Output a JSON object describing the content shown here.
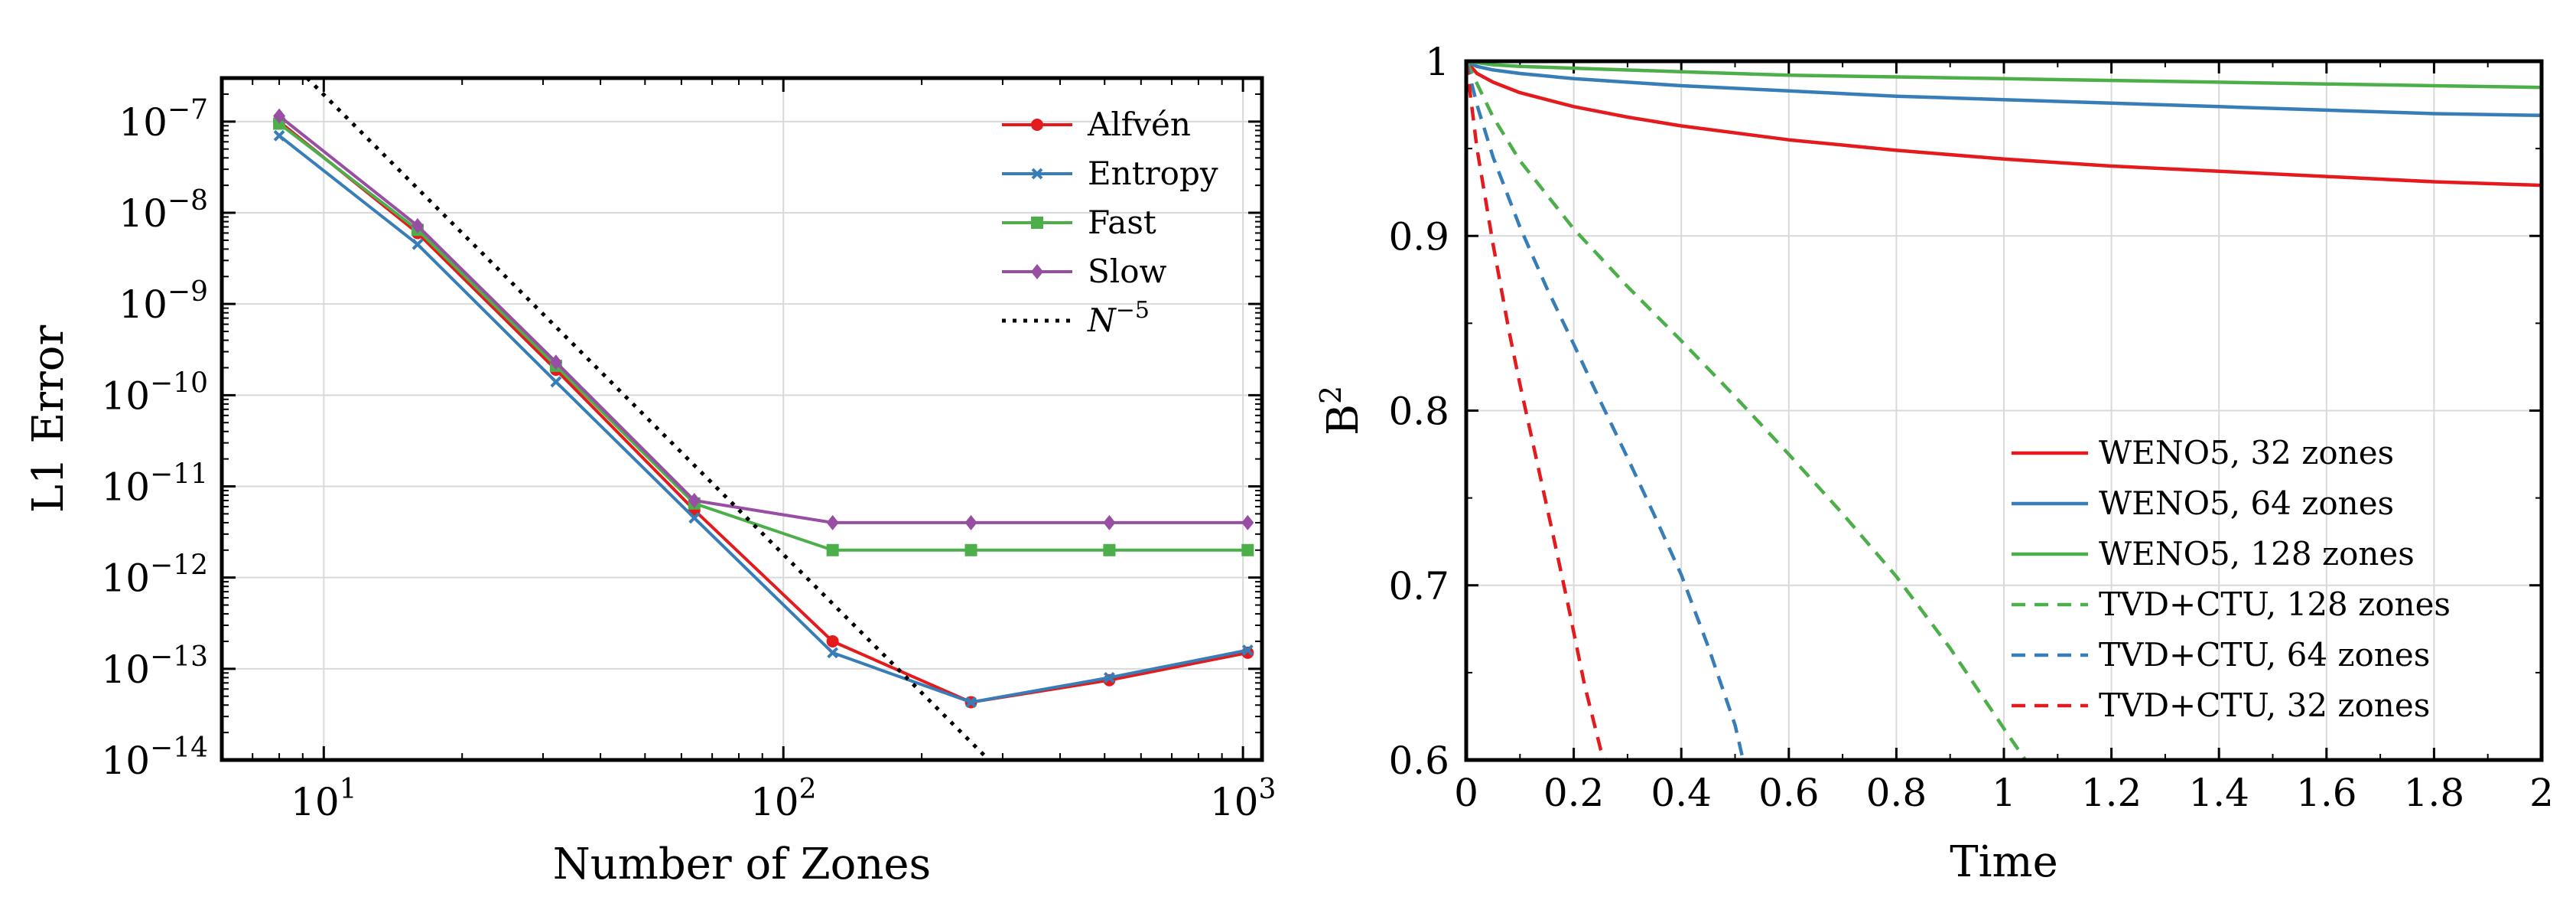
{
  "chart_data": [
    {
      "type": "line",
      "xscale": "log",
      "yscale": "log",
      "xlabel": "Number of Zones",
      "ylabel": "L1 Error",
      "xlim": [
        6,
        1100
      ],
      "ylim": [
        1e-14,
        3e-07
      ],
      "xticks": [
        {
          "value": 10,
          "base": "10",
          "exp": "1"
        },
        {
          "value": 100,
          "base": "10",
          "exp": "2"
        },
        {
          "value": 1000,
          "base": "10",
          "exp": "3"
        }
      ],
      "yticks": [
        {
          "value": 1e-14,
          "base": "10",
          "exp": "−14"
        },
        {
          "value": 1e-13,
          "base": "10",
          "exp": "−13"
        },
        {
          "value": 1e-12,
          "base": "10",
          "exp": "−12"
        },
        {
          "value": 1e-11,
          "base": "10",
          "exp": "−11"
        },
        {
          "value": 1e-10,
          "base": "10",
          "exp": "−10"
        },
        {
          "value": 1e-09,
          "base": "10",
          "exp": "−9"
        },
        {
          "value": 1e-08,
          "base": "10",
          "exp": "−8"
        },
        {
          "value": 1e-07,
          "base": "10",
          "exp": "−7"
        }
      ],
      "grid": true,
      "legend_position": "top-right",
      "series": [
        {
          "name": "Alfvén",
          "color": "#e41a1c",
          "marker": "circle",
          "x": [
            8,
            16,
            32,
            64,
            128,
            256,
            512,
            1024
          ],
          "y": [
            1e-07,
            6e-09,
            1.9e-10,
            5.5e-12,
            2e-13,
            4.3e-14,
            7.5e-14,
            1.5e-13
          ]
        },
        {
          "name": "Entropy",
          "color": "#377eb8",
          "marker": "x",
          "x": [
            8,
            16,
            32,
            64,
            128,
            256,
            512,
            1024
          ],
          "y": [
            7e-08,
            4.5e-09,
            1.4e-10,
            4.5e-12,
            1.5e-13,
            4.3e-14,
            8e-14,
            1.6e-13
          ]
        },
        {
          "name": "Fast",
          "color": "#4daf4a",
          "marker": "square",
          "x": [
            8,
            16,
            32,
            64,
            128,
            256,
            512,
            1024
          ],
          "y": [
            9.5e-08,
            6.5e-09,
            2.1e-10,
            6.5e-12,
            2e-12,
            2e-12,
            2e-12,
            2e-12
          ]
        },
        {
          "name": "Slow",
          "color": "#984ea3",
          "marker": "diamond",
          "x": [
            8,
            16,
            32,
            64,
            128,
            256,
            512,
            1024
          ],
          "y": [
            1.15e-07,
            7.2e-09,
            2.3e-10,
            7e-12,
            4e-12,
            4e-12,
            4e-12,
            4e-12
          ]
        },
        {
          "name": "N",
          "name_sup": "−5",
          "color": "#000000",
          "dash": "dotted",
          "x": [
            9.2,
            280
          ],
          "y": [
            3e-07,
            1e-14
          ]
        }
      ]
    },
    {
      "type": "line",
      "xlabel": "Time",
      "ylabel": "B",
      "ylabel_sup": "2",
      "xlim": [
        0,
        2
      ],
      "ylim": [
        0.6,
        1.0
      ],
      "xticks": [
        "0",
        "0.2",
        "0.4",
        "0.6",
        "0.8",
        "1",
        "1.2",
        "1.4",
        "1.6",
        "1.8",
        "2"
      ],
      "yticks": [
        "0.6",
        "0.7",
        "0.8",
        "0.9",
        "1"
      ],
      "grid": true,
      "legend_position": "bottom-right",
      "series": [
        {
          "name": "WENO5, 32 zones",
          "color": "#e41a1c",
          "dash": "solid",
          "x": [
            0,
            0.02,
            0.05,
            0.1,
            0.2,
            0.3,
            0.4,
            0.6,
            0.8,
            1.0,
            1.2,
            1.4,
            1.6,
            1.8,
            2.0
          ],
          "y": [
            1.0,
            0.993,
            0.988,
            0.982,
            0.974,
            0.968,
            0.963,
            0.955,
            0.949,
            0.944,
            0.94,
            0.937,
            0.934,
            0.931,
            0.929
          ]
        },
        {
          "name": "WENO5, 64 zones",
          "color": "#377eb8",
          "dash": "solid",
          "x": [
            0,
            0.02,
            0.05,
            0.1,
            0.2,
            0.4,
            0.6,
            0.8,
            1.0,
            1.2,
            1.4,
            1.6,
            1.8,
            2.0
          ],
          "y": [
            1.0,
            0.997,
            0.995,
            0.993,
            0.99,
            0.986,
            0.983,
            0.98,
            0.978,
            0.976,
            0.974,
            0.972,
            0.97,
            0.969
          ]
        },
        {
          "name": "WENO5, 128 zones",
          "color": "#4daf4a",
          "dash": "solid",
          "x": [
            0,
            0.05,
            0.1,
            0.2,
            0.4,
            0.6,
            0.8,
            1.0,
            1.2,
            1.4,
            1.6,
            1.8,
            2.0
          ],
          "y": [
            1.0,
            0.998,
            0.997,
            0.996,
            0.994,
            0.992,
            0.991,
            0.99,
            0.989,
            0.988,
            0.987,
            0.986,
            0.985
          ]
        },
        {
          "name": "TVD+CTU, 128 zones",
          "color": "#4daf4a",
          "dash": "dashed",
          "x": [
            0,
            0.05,
            0.1,
            0.2,
            0.3,
            0.4,
            0.5,
            0.6,
            0.7,
            0.8,
            0.9,
            1.0,
            1.04
          ],
          "y": [
            1.0,
            0.968,
            0.943,
            0.904,
            0.871,
            0.84,
            0.808,
            0.775,
            0.741,
            0.705,
            0.664,
            0.618,
            0.6
          ]
        },
        {
          "name": "TVD+CTU, 64 zones",
          "color": "#377eb8",
          "dash": "dashed",
          "x": [
            0,
            0.02,
            0.05,
            0.1,
            0.15,
            0.2,
            0.25,
            0.3,
            0.35,
            0.4,
            0.45,
            0.5,
            0.515
          ],
          "y": [
            1.0,
            0.975,
            0.945,
            0.905,
            0.87,
            0.838,
            0.805,
            0.773,
            0.74,
            0.706,
            0.665,
            0.62,
            0.6
          ]
        },
        {
          "name": "TVD+CTU, 32 zones",
          "color": "#e41a1c",
          "dash": "dashed",
          "x": [
            0,
            0.02,
            0.05,
            0.08,
            0.1,
            0.13,
            0.16,
            0.19,
            0.22,
            0.25,
            0.26
          ],
          "y": [
            1.0,
            0.95,
            0.895,
            0.845,
            0.815,
            0.773,
            0.731,
            0.688,
            0.643,
            0.606,
            0.6
          ]
        }
      ]
    }
  ]
}
